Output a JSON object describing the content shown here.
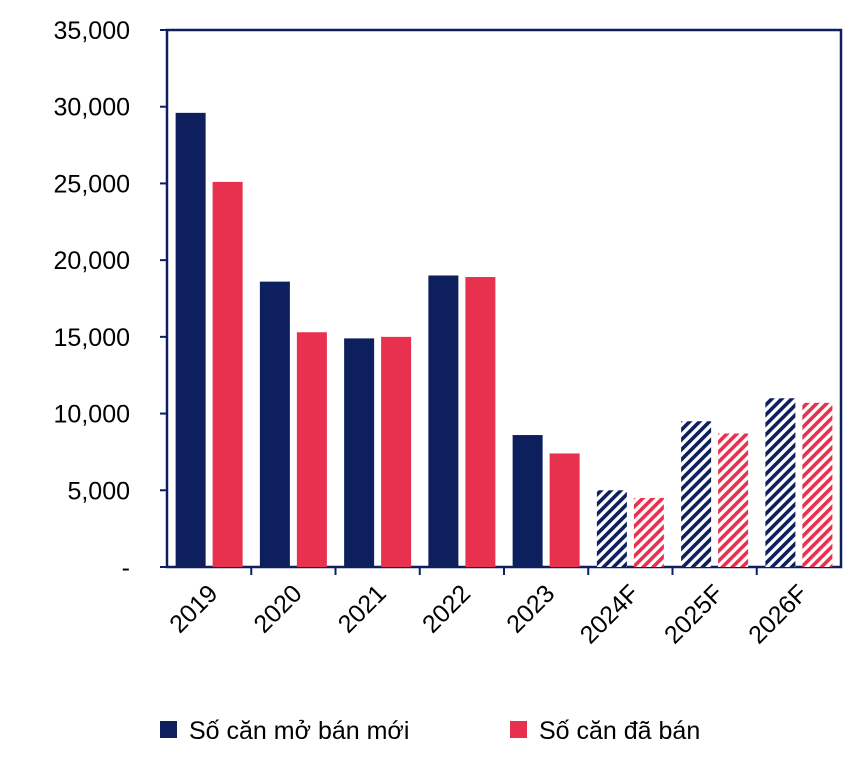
{
  "chart_data": {
    "type": "bar",
    "title": "",
    "xlabel": "",
    "ylabel": "",
    "ylim": [
      0,
      35000
    ],
    "yticks": [
      0,
      5000,
      10000,
      15000,
      20000,
      25000,
      30000,
      35000
    ],
    "ytick_labels": [
      "-",
      "5,000",
      "10,000",
      "15,000",
      "20,000",
      "25,000",
      "30,000",
      "35,000"
    ],
    "categories": [
      "2019",
      "2020",
      "2021",
      "2022",
      "2023",
      "2024F",
      "2025F",
      "2026F"
    ],
    "forecast_categories": [
      "2024F",
      "2025F",
      "2026F"
    ],
    "series": [
      {
        "name": "Số căn mở bán mới",
        "color": "#0d1f5c",
        "values": [
          29600,
          18600,
          14900,
          19000,
          8600,
          5000,
          9500,
          11000
        ]
      },
      {
        "name": "Số căn đã bán",
        "color": "#e8304f",
        "values": [
          25100,
          15300,
          15000,
          18900,
          7400,
          4500,
          8700,
          10700
        ]
      }
    ],
    "legend_position": "bottom",
    "grid": false
  }
}
